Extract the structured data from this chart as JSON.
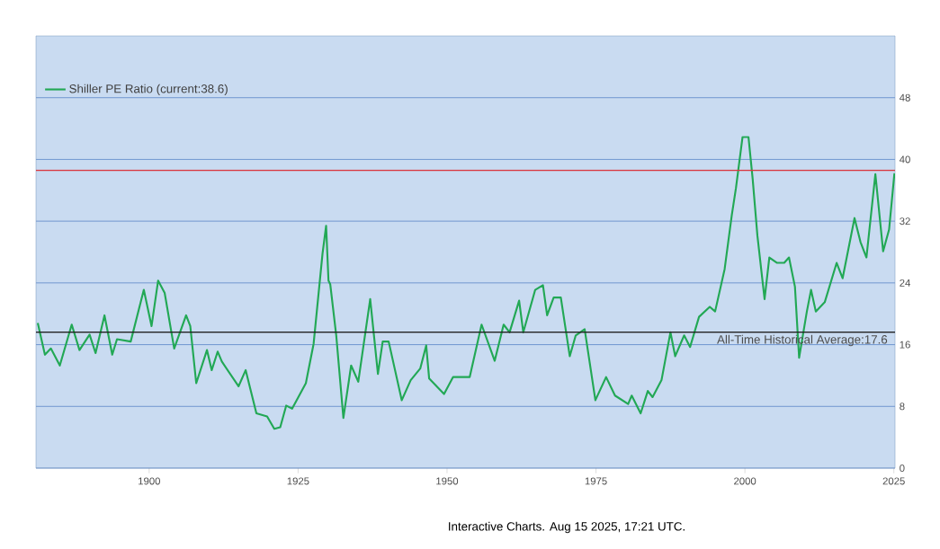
{
  "chart_data": {
    "type": "line",
    "x": [
      1881.3,
      1882.5,
      1883.5,
      1885,
      1887,
      1888.3,
      1890,
      1891,
      1892.5,
      1893.8,
      1894.6,
      1896.9,
      1899.1,
      1900.4,
      1901.5,
      1902.6,
      1904.2,
      1906.2,
      1906.9,
      1907.9,
      1909.7,
      1910.5,
      1911.5,
      1912.2,
      1915,
      1916.2,
      1918,
      1919.8,
      1921,
      1922,
      1923,
      1924,
      1926.3,
      1927.6,
      1929.1,
      1929.7,
      1930.1,
      1930.4,
      1931.4,
      1932.6,
      1933.9,
      1935.1,
      1937.1,
      1938.4,
      1939.2,
      1940.2,
      1942.4,
      1943.9,
      1945.5,
      1946.5,
      1947,
      1949.5,
      1951,
      1953.8,
      1955.8,
      1958,
      1959.5,
      1960.5,
      1962.1,
      1962.8,
      1964.8,
      1966.1,
      1966.8,
      1967.9,
      1969.1,
      1970.6,
      1971.6,
      1973.1,
      1974.9,
      1976.7,
      1978.2,
      1980.4,
      1981,
      1982.5,
      1983.7,
      1984.5,
      1986,
      1987.5,
      1988.3,
      1989.8,
      1990.8,
      1992.3,
      1994.1,
      1995,
      1996.6,
      1997.8,
      1998.5,
      1999.6,
      2000.6,
      2001.3,
      2002.1,
      2003.3,
      2004.1,
      2005.4,
      2006.6,
      2007.4,
      2008.4,
      2009.1,
      2010.4,
      2011.1,
      2011.9,
      2013.4,
      2015.4,
      2016.4,
      2018.4,
      2019.4,
      2020.4,
      2021.9,
      2023.2,
      2024.2,
      2025.1
    ],
    "series": [
      {
        "name": "Shiller PE Ratio (current:38.6)",
        "color": "#22a855",
        "values": [
          18.8,
          14.7,
          15.5,
          13.3,
          18.6,
          15.3,
          17.3,
          14.9,
          19.8,
          14.7,
          16.7,
          16.4,
          23.1,
          18.4,
          24.3,
          22.7,
          15.5,
          19.8,
          18.4,
          11.0,
          15.3,
          12.7,
          15.1,
          13.8,
          10.6,
          12.7,
          7.1,
          6.7,
          5.1,
          5.3,
          8.1,
          7.7,
          11.0,
          16.1,
          27.8,
          31.4,
          24.3,
          23.8,
          17.2,
          6.5,
          13.3,
          11.2,
          21.9,
          12.2,
          16.4,
          16.4,
          8.8,
          11.4,
          12.9,
          15.9,
          11.6,
          9.6,
          11.8,
          11.8,
          18.6,
          13.9,
          18.6,
          17.6,
          21.7,
          17.6,
          23.1,
          23.7,
          19.8,
          22.1,
          22.1,
          14.5,
          17.2,
          18.0,
          8.8,
          11.8,
          9.4,
          8.3,
          9.4,
          7.1,
          10.0,
          9.2,
          11.4,
          17.6,
          14.5,
          17.2,
          15.7,
          19.6,
          20.9,
          20.3,
          25.8,
          32.8,
          36.3,
          42.9,
          42.9,
          37.5,
          30.1,
          21.9,
          27.3,
          26.6,
          26.6,
          27.3,
          23.5,
          14.3,
          20.3,
          23.1,
          20.3,
          21.5,
          26.6,
          24.6,
          32.4,
          29.3,
          27.3,
          38.1,
          28.1,
          30.9,
          38.2
        ]
      }
    ],
    "xlim": [
      1881,
      2025.2
    ],
    "ylim": [
      0,
      56
    ],
    "xticks": [
      1900,
      1925,
      1950,
      1975,
      2000,
      2025
    ],
    "yticks": [
      0,
      8,
      16,
      24,
      32,
      40,
      48
    ],
    "grid": "y",
    "legend": "top left",
    "ref_lines": [
      {
        "axis": "y",
        "value": 38.6,
        "color": "#d9363e"
      },
      {
        "axis": "y",
        "value": 17.6,
        "label": "All-Time Historical Average:17.6",
        "color": "#222222"
      }
    ],
    "annotations": [
      "Interactive Charts. Aug 15 2025, 17:21 UTC."
    ]
  }
}
